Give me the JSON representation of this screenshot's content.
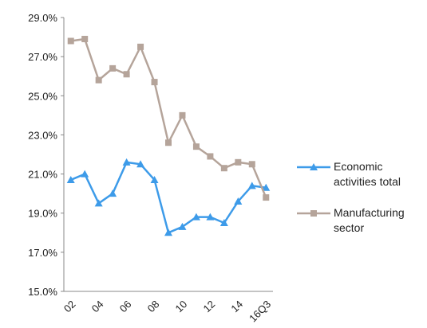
{
  "chart_data": {
    "type": "line",
    "categories": [
      "02",
      null,
      "04",
      null,
      "06",
      null,
      "08",
      null,
      "10",
      null,
      "12",
      null,
      "14",
      null,
      "16Q3"
    ],
    "series": [
      {
        "name": "Economic activities total",
        "color": "#3d9be9",
        "marker": "triangle",
        "values": [
          20.7,
          21.0,
          19.5,
          20.0,
          21.6,
          21.5,
          20.7,
          18.0,
          18.3,
          18.8,
          18.8,
          18.5,
          19.6,
          20.4,
          20.3
        ]
      },
      {
        "name": "Manufacturing sector",
        "color": "#b5a49a",
        "marker": "square",
        "values": [
          27.8,
          27.9,
          25.8,
          26.4,
          26.1,
          27.5,
          25.7,
          22.6,
          24.0,
          22.4,
          21.9,
          21.3,
          21.6,
          21.5,
          19.8
        ]
      }
    ],
    "ylim": [
      15,
      29
    ],
    "yticks": [
      {
        "value": 15,
        "label": "15.0%"
      },
      {
        "value": 17,
        "label": "17.0%"
      },
      {
        "value": 19,
        "label": "19.0%"
      },
      {
        "value": 21,
        "label": "21.0%"
      },
      {
        "value": 23,
        "label": "23.0%"
      },
      {
        "value": 25,
        "label": "25.0%"
      },
      {
        "value": 27,
        "label": "27.0%"
      },
      {
        "value": 29,
        "label": "29.0%"
      }
    ],
    "grid": false,
    "legend": "right"
  }
}
